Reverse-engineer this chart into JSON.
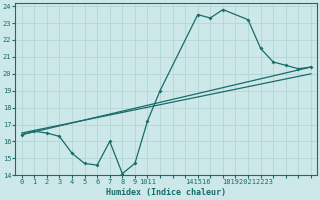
{
  "title": "",
  "xlabel": "Humidex (Indice chaleur)",
  "ylabel": "",
  "bg_color": "#cde8e8",
  "line_color": "#1a6b6b",
  "grid_color": "#b8d8d8",
  "xlim": [
    -0.5,
    23.5
  ],
  "ylim": [
    14,
    24.2
  ],
  "xticks": [
    0,
    1,
    2,
    3,
    4,
    5,
    6,
    7,
    8,
    9,
    10,
    11,
    12,
    13,
    14,
    15,
    16,
    17,
    18,
    19,
    20,
    21,
    22,
    23
  ],
  "xtick_labels": [
    "0",
    "1",
    "2",
    "3",
    "4",
    "5",
    "6",
    "7",
    "8",
    "9",
    "1011",
    "",
    "141516",
    "",
    "",
    "181920212223",
    "",
    "",
    "",
    "",
    "",
    "",
    "",
    ""
  ],
  "yticks": [
    14,
    15,
    16,
    17,
    18,
    19,
    20,
    21,
    22,
    23,
    24
  ],
  "series1": {
    "x": [
      0,
      1,
      2,
      3,
      4,
      5,
      6,
      7,
      8,
      9,
      10,
      11,
      14,
      15,
      16,
      18,
      19,
      20,
      21,
      22,
      23
    ],
    "y": [
      16.4,
      16.6,
      16.5,
      16.3,
      15.3,
      14.7,
      14.6,
      16.0,
      14.1,
      14.7,
      17.2,
      19.0,
      23.5,
      23.3,
      23.8,
      23.2,
      21.5,
      20.7,
      20.5,
      20.3,
      20.4
    ]
  },
  "series2": {
    "x": [
      0,
      23
    ],
    "y": [
      16.4,
      20.4
    ]
  },
  "series3": {
    "x": [
      0,
      23
    ],
    "y": [
      16.5,
      20.0
    ]
  }
}
